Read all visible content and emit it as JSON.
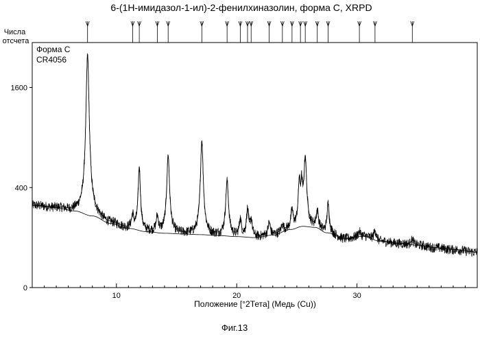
{
  "figure": {
    "title": "6-(1H-имидазол-1-ил)-2-фенилхиназолин, форма С, XRPD",
    "caption": "Фиг.13"
  },
  "chart_data": {
    "type": "line",
    "title": "6-(1H-имидазол-1-ил)-2-фенилхиназолин, форма С, XRPD",
    "xlabel": "Положение [°2Тета] (Медь (Cu))",
    "ylabel": "Числа отсчета",
    "annotations": [
      "Форма C",
      "CR4056"
    ],
    "xlim": [
      3,
      40
    ],
    "ylim": [
      0,
      2400
    ],
    "y_scale": "sqrt",
    "x_ticks": [
      10,
      20,
      30
    ],
    "y_ticks": [
      0,
      400,
      1600
    ],
    "grid": false,
    "peak_markers_2theta": [
      7.6,
      11.35,
      11.9,
      13.4,
      14.3,
      17.1,
      19.2,
      20.3,
      20.9,
      21.2,
      22.7,
      23.8,
      24.6,
      25.3,
      25.7,
      26.7,
      27.6,
      30.2,
      31.5,
      34.6
    ],
    "background": {
      "x": [
        3,
        5,
        6.5,
        8,
        9.5,
        11,
        12.5,
        14,
        15.5,
        17,
        18.5,
        20,
        21.5,
        23,
        24.5,
        25.5,
        26.5,
        27.5,
        29,
        30.5,
        32,
        33.5,
        35,
        36.5,
        38,
        40
      ],
      "y": [
        270,
        255,
        235,
        205,
        165,
        140,
        125,
        118,
        115,
        112,
        108,
        104,
        100,
        110,
        135,
        150,
        145,
        120,
        95,
        105,
        85,
        78,
        72,
        64,
        58,
        50
      ]
    },
    "peaks": [
      {
        "x": 7.6,
        "height": 1950,
        "width": 0.14
      },
      {
        "x": 11.35,
        "height": 70,
        "width": 0.1
      },
      {
        "x": 11.9,
        "height": 450,
        "width": 0.1
      },
      {
        "x": 13.4,
        "height": 80,
        "width": 0.1
      },
      {
        "x": 14.3,
        "height": 580,
        "width": 0.12
      },
      {
        "x": 17.1,
        "height": 750,
        "width": 0.12
      },
      {
        "x": 19.2,
        "height": 350,
        "width": 0.12
      },
      {
        "x": 20.3,
        "height": 80,
        "width": 0.1
      },
      {
        "x": 20.9,
        "height": 140,
        "width": 0.1
      },
      {
        "x": 21.2,
        "height": 80,
        "width": 0.1
      },
      {
        "x": 22.7,
        "height": 60,
        "width": 0.1
      },
      {
        "x": 23.8,
        "height": 30,
        "width": 0.1
      },
      {
        "x": 24.6,
        "height": 100,
        "width": 0.1
      },
      {
        "x": 25.2,
        "height": 280,
        "width": 0.09
      },
      {
        "x": 25.4,
        "height": 240,
        "width": 0.09
      },
      {
        "x": 25.7,
        "height": 520,
        "width": 0.12
      },
      {
        "x": 26.7,
        "height": 90,
        "width": 0.1
      },
      {
        "x": 27.6,
        "height": 160,
        "width": 0.1
      },
      {
        "x": 30.2,
        "height": 20,
        "width": 0.12
      },
      {
        "x": 31.5,
        "height": 40,
        "width": 0.12
      },
      {
        "x": 34.6,
        "height": 20,
        "width": 0.12
      }
    ]
  }
}
